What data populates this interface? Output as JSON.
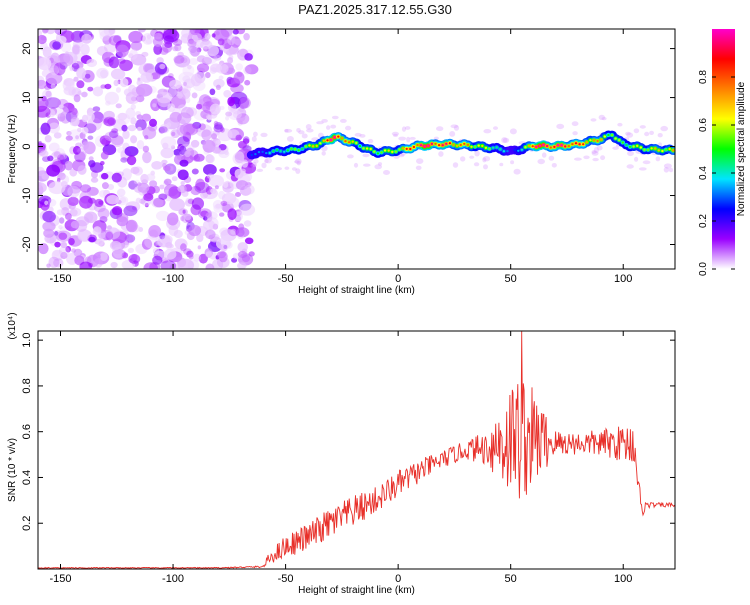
{
  "figure": {
    "title": "PAZ1.2025.317.12.55.G30"
  },
  "chart_data": [
    {
      "type": "heatmap",
      "title": "PAZ1.2025.317.12.55.G30",
      "xlabel": "Height of straight line (km)",
      "ylabel": "Frequency (Hz)",
      "xlim": [
        -160,
        123
      ],
      "ylim": [
        -25,
        24
      ],
      "xticks": [
        -150,
        -100,
        -50,
        0,
        50,
        100
      ],
      "yticks": [
        20,
        10,
        0,
        -10,
        -20
      ],
      "noise_region_x": [
        -160,
        -65
      ],
      "signal_region_x": [
        -65,
        123
      ],
      "ridge": {
        "x": [
          -65,
          -55,
          -45,
          -35,
          -28,
          -20,
          -10,
          0,
          10,
          20,
          30,
          40,
          45,
          50,
          55,
          60,
          70,
          80,
          90,
          95,
          100,
          110,
          123
        ],
        "frequency": [
          -1.5,
          -1.0,
          -0.6,
          0.5,
          2.0,
          0.8,
          -1.2,
          -0.8,
          0.2,
          0.5,
          0.3,
          -0.2,
          -0.5,
          -1.0,
          -0.5,
          0.2,
          0.0,
          0.5,
          1.5,
          2.5,
          0.5,
          -0.5,
          -0.8
        ],
        "amplitude": [
          0.25,
          0.4,
          0.5,
          0.65,
          0.95,
          0.6,
          0.55,
          0.6,
          0.95,
          0.85,
          0.7,
          0.55,
          0.4,
          0.25,
          0.35,
          0.95,
          0.9,
          0.8,
          0.65,
          0.55,
          0.5,
          0.6,
          0.65
        ]
      },
      "colorbar": {
        "label": "Normalized spectral amplitude",
        "range": [
          0,
          1
        ],
        "ticks": [
          "0.0",
          "0.2",
          "0.4",
          "0.6",
          "0.8"
        ],
        "colors": [
          "#ffffff",
          "#9a00ff",
          "#0000ff",
          "#00e5ff",
          "#00ff00",
          "#ffff00",
          "#ff8000",
          "#ff0000",
          "#ff00cc"
        ]
      }
    },
    {
      "type": "line",
      "xlabel": "Height of straight line (km)",
      "ylabel": "SNR (10 * v/v)",
      "scale_note": "(x10⁴)",
      "xlim": [
        -160,
        123
      ],
      "ylim": [
        0,
        1.04
      ],
      "xticks": [
        -150,
        -100,
        -50,
        0,
        50,
        100
      ],
      "yticks": [
        0.2,
        0.4,
        0.6,
        0.8,
        1.0
      ],
      "series": [
        {
          "name": "SNR",
          "color": "#e8302a",
          "x": [
            -160,
            -140,
            -120,
            -100,
            -80,
            -60,
            -57,
            -50,
            -40,
            -30,
            -20,
            -10,
            0,
            10,
            20,
            30,
            40,
            45,
            50,
            55,
            60,
            70,
            80,
            90,
            100,
            105,
            108,
            110,
            115,
            123
          ],
          "y": [
            0.005,
            0.005,
            0.005,
            0.005,
            0.005,
            0.01,
            0.05,
            0.1,
            0.14,
            0.2,
            0.25,
            0.3,
            0.37,
            0.43,
            0.48,
            0.52,
            0.53,
            0.55,
            0.57,
            0.58,
            0.57,
            0.55,
            0.55,
            0.55,
            0.55,
            0.55,
            0.25,
            0.28,
            0.28,
            0.28
          ],
          "fluctuation": [
            0.002,
            0.002,
            0.002,
            0.002,
            0.002,
            0.004,
            0.03,
            0.05,
            0.06,
            0.07,
            0.07,
            0.06,
            0.06,
            0.05,
            0.04,
            0.04,
            0.08,
            0.2,
            0.25,
            0.3,
            0.22,
            0.06,
            0.05,
            0.06,
            0.08,
            0.1,
            0.04,
            0.015,
            0.01,
            0.01
          ],
          "peak": {
            "x": 55,
            "y": 1.04
          }
        }
      ]
    }
  ]
}
